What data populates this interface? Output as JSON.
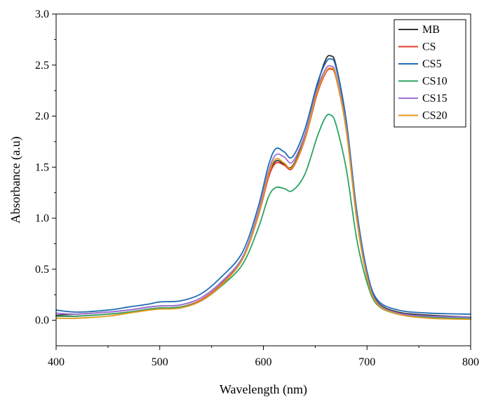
{
  "chart_data": {
    "type": "line",
    "title": "",
    "xlabel": "Wavelength (nm)",
    "ylabel": "Absorbance (a.u)",
    "xlim": [
      400,
      800
    ],
    "ylim": [
      -0.25,
      3.0
    ],
    "xticks": [
      400,
      500,
      600,
      700,
      800
    ],
    "xtick_labels": [
      "400",
      "500",
      "600",
      "700",
      "800"
    ],
    "yticks": [
      0.0,
      0.5,
      1.0,
      1.5,
      2.0,
      2.5,
      3.0
    ],
    "ytick_labels": [
      "0.0",
      "0.5",
      "1.0",
      "1.5",
      "2.0",
      "2.5",
      "3.0"
    ],
    "grid": false,
    "legend_position": "top-right",
    "x": [
      400,
      420,
      450,
      470,
      490,
      500,
      520,
      540,
      560,
      580,
      595,
      605,
      612,
      620,
      628,
      640,
      652,
      660,
      665,
      670,
      680,
      690,
      700,
      710,
      730,
      760,
      800
    ],
    "series": [
      {
        "name": "MB",
        "color": "#333333",
        "values": [
          0.05,
          0.06,
          0.08,
          0.1,
          0.13,
          0.14,
          0.15,
          0.22,
          0.38,
          0.62,
          1.05,
          1.42,
          1.56,
          1.53,
          1.51,
          1.8,
          2.3,
          2.55,
          2.59,
          2.5,
          1.95,
          1.05,
          0.45,
          0.18,
          0.08,
          0.05,
          0.03
        ]
      },
      {
        "name": "CS",
        "color": "#e03b2f",
        "values": [
          0.04,
          0.04,
          0.06,
          0.08,
          0.11,
          0.12,
          0.13,
          0.2,
          0.36,
          0.6,
          1.02,
          1.4,
          1.54,
          1.52,
          1.49,
          1.77,
          2.22,
          2.42,
          2.46,
          2.38,
          1.86,
          1.0,
          0.42,
          0.16,
          0.06,
          0.03,
          0.01
        ]
      },
      {
        "name": "CS5",
        "color": "#1f6db3",
        "values": [
          0.1,
          0.08,
          0.1,
          0.13,
          0.16,
          0.18,
          0.19,
          0.26,
          0.43,
          0.67,
          1.11,
          1.52,
          1.68,
          1.65,
          1.6,
          1.87,
          2.32,
          2.52,
          2.56,
          2.48,
          1.95,
          1.08,
          0.48,
          0.2,
          0.1,
          0.07,
          0.06
        ]
      },
      {
        "name": "CS10",
        "color": "#2aa362",
        "values": [
          0.04,
          0.04,
          0.06,
          0.08,
          0.11,
          0.12,
          0.13,
          0.19,
          0.34,
          0.55,
          0.9,
          1.21,
          1.3,
          1.29,
          1.27,
          1.43,
          1.8,
          1.99,
          2.01,
          1.92,
          1.48,
          0.8,
          0.37,
          0.15,
          0.06,
          0.03,
          0.02
        ]
      },
      {
        "name": "CS15",
        "color": "#a070d8",
        "values": [
          0.07,
          0.06,
          0.08,
          0.1,
          0.13,
          0.14,
          0.15,
          0.22,
          0.38,
          0.62,
          1.06,
          1.46,
          1.62,
          1.6,
          1.55,
          1.82,
          2.27,
          2.46,
          2.49,
          2.41,
          1.89,
          1.02,
          0.44,
          0.17,
          0.07,
          0.04,
          0.03
        ]
      },
      {
        "name": "CS20",
        "color": "#e09a1a",
        "values": [
          0.02,
          0.02,
          0.04,
          0.07,
          0.1,
          0.11,
          0.12,
          0.19,
          0.35,
          0.6,
          1.03,
          1.43,
          1.58,
          1.54,
          1.5,
          1.78,
          2.24,
          2.43,
          2.47,
          2.39,
          1.86,
          1.0,
          0.42,
          0.16,
          0.06,
          0.02,
          0.01
        ]
      }
    ]
  }
}
